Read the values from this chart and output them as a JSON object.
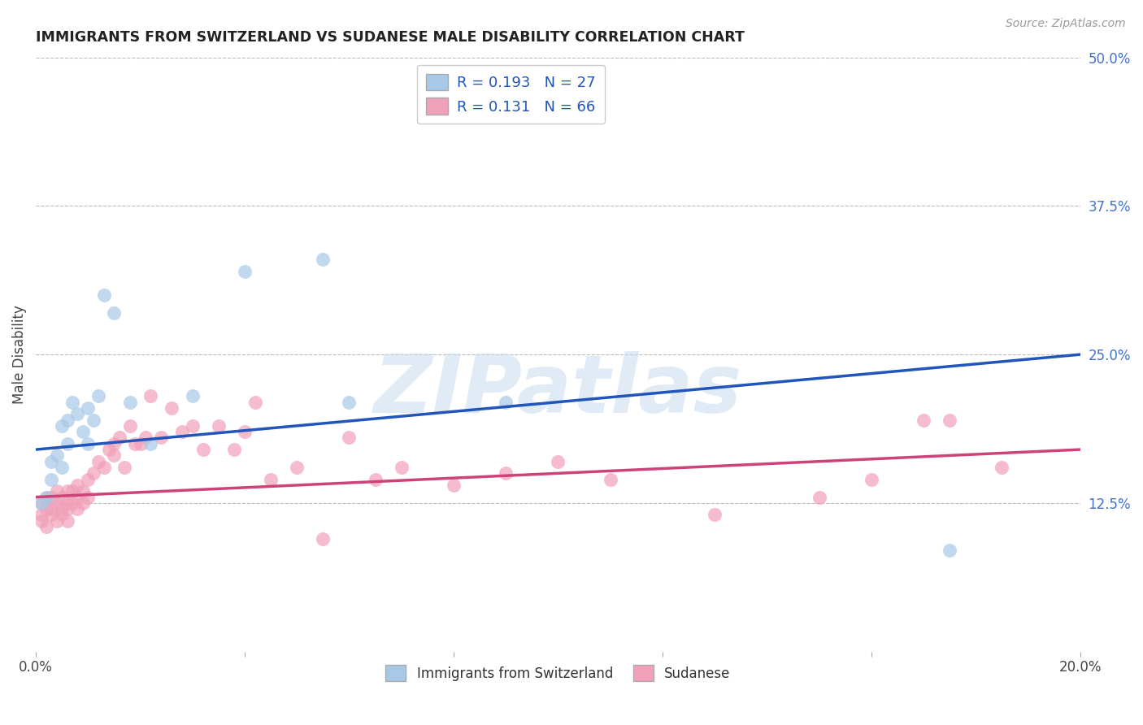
{
  "title": "IMMIGRANTS FROM SWITZERLAND VS SUDANESE MALE DISABILITY CORRELATION CHART",
  "source_text": "Source: ZipAtlas.com",
  "ylabel": "Male Disability",
  "xlim": [
    0.0,
    0.2
  ],
  "ylim": [
    0.0,
    0.5
  ],
  "xticks": [
    0.0,
    0.04,
    0.08,
    0.12,
    0.16,
    0.2
  ],
  "yticks_right": [
    0.125,
    0.25,
    0.375,
    0.5
  ],
  "yticklabels_right": [
    "12.5%",
    "25.0%",
    "37.5%",
    "50.0%"
  ],
  "r1": 0.193,
  "n1": 27,
  "r2": 0.131,
  "n2": 66,
  "color_swiss": "#A8C8E8",
  "color_sudanese": "#F0A0B8",
  "line_color_swiss": "#2255BB",
  "line_color_sudanese": "#CC4477",
  "watermark": "ZIPatlas",
  "swiss_x": [
    0.001,
    0.002,
    0.003,
    0.003,
    0.004,
    0.005,
    0.005,
    0.006,
    0.006,
    0.007,
    0.008,
    0.009,
    0.01,
    0.01,
    0.011,
    0.012,
    0.013,
    0.015,
    0.018,
    0.022,
    0.03,
    0.04,
    0.055,
    0.06,
    0.075,
    0.09,
    0.175
  ],
  "swiss_y": [
    0.125,
    0.13,
    0.145,
    0.16,
    0.165,
    0.155,
    0.19,
    0.175,
    0.195,
    0.21,
    0.2,
    0.185,
    0.175,
    0.205,
    0.195,
    0.215,
    0.3,
    0.285,
    0.21,
    0.175,
    0.215,
    0.32,
    0.33,
    0.21,
    0.47,
    0.21,
    0.085
  ],
  "sudanese_x": [
    0.001,
    0.001,
    0.001,
    0.002,
    0.002,
    0.002,
    0.003,
    0.003,
    0.003,
    0.004,
    0.004,
    0.004,
    0.005,
    0.005,
    0.005,
    0.006,
    0.006,
    0.006,
    0.006,
    0.007,
    0.007,
    0.008,
    0.008,
    0.008,
    0.009,
    0.009,
    0.01,
    0.01,
    0.011,
    0.012,
    0.013,
    0.014,
    0.015,
    0.015,
    0.016,
    0.017,
    0.018,
    0.019,
    0.02,
    0.021,
    0.022,
    0.024,
    0.026,
    0.028,
    0.03,
    0.032,
    0.035,
    0.038,
    0.04,
    0.042,
    0.045,
    0.05,
    0.055,
    0.06,
    0.065,
    0.07,
    0.08,
    0.09,
    0.1,
    0.11,
    0.13,
    0.15,
    0.16,
    0.175,
    0.185,
    0.17
  ],
  "sudanese_y": [
    0.115,
    0.125,
    0.11,
    0.12,
    0.105,
    0.13,
    0.12,
    0.115,
    0.13,
    0.125,
    0.11,
    0.135,
    0.12,
    0.13,
    0.115,
    0.125,
    0.135,
    0.12,
    0.11,
    0.125,
    0.135,
    0.13,
    0.12,
    0.14,
    0.125,
    0.135,
    0.13,
    0.145,
    0.15,
    0.16,
    0.155,
    0.17,
    0.165,
    0.175,
    0.18,
    0.155,
    0.19,
    0.175,
    0.175,
    0.18,
    0.215,
    0.18,
    0.205,
    0.185,
    0.19,
    0.17,
    0.19,
    0.17,
    0.185,
    0.21,
    0.145,
    0.155,
    0.095,
    0.18,
    0.145,
    0.155,
    0.14,
    0.15,
    0.16,
    0.145,
    0.115,
    0.13,
    0.145,
    0.195,
    0.155,
    0.195
  ]
}
